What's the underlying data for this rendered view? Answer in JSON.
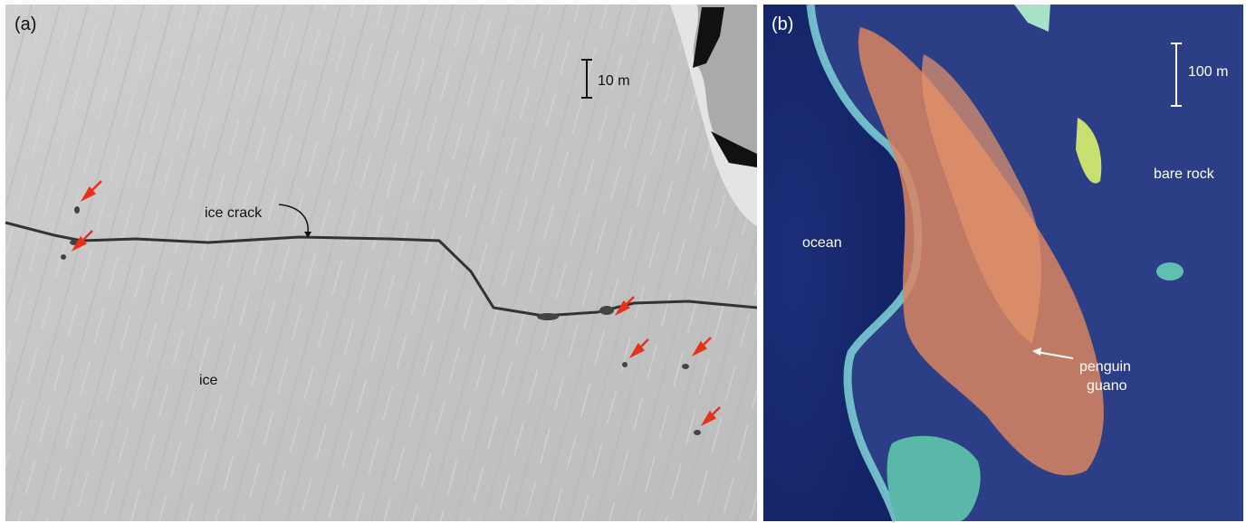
{
  "panels": [
    {
      "label": "(a)",
      "scale_bar": "10 m",
      "annotations": [
        "ice crack",
        "ice"
      ]
    },
    {
      "label": "(b)",
      "scale_bar": "100 m",
      "annotations": [
        "ocean",
        "bare rock"
      ],
      "pointer_label": [
        "penguin",
        "guano"
      ]
    }
  ]
}
